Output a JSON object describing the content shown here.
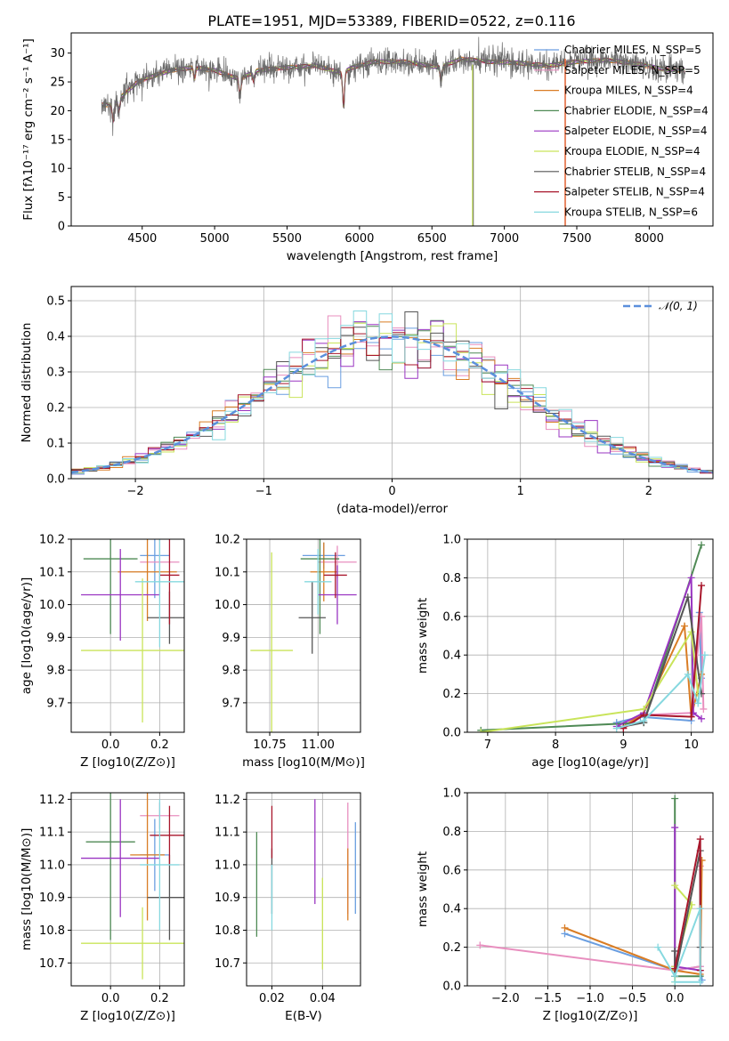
{
  "title": "PLATE=1951, MJD=53389, FIBERID=0522, z=0.116",
  "colors": [
    "#6a9ee0",
    "#e88fbf",
    "#d97d25",
    "#4f8a55",
    "#9a35c2",
    "#c9e45a",
    "#555555",
    "#a8162b",
    "#86d8df"
  ],
  "chart_data": [
    {
      "id": "spectrum",
      "type": "line",
      "xlabel": "wavelength [Angstrom, rest frame]",
      "ylabel": "Flux [fλ10⁻¹⁷ erg cm⁻² s⁻¹ A⁻¹]",
      "xlim": [
        4010,
        8440
      ],
      "ylim": [
        0,
        33.5
      ],
      "xticks": [
        4500,
        5000,
        5500,
        6000,
        6500,
        7000,
        7500,
        8000
      ],
      "yticks": [
        0,
        5,
        10,
        15,
        20,
        25,
        30
      ],
      "continuum": [
        [
          4220,
          21
        ],
        [
          4300,
          21
        ],
        [
          4380,
          23
        ],
        [
          4470,
          25
        ],
        [
          4570,
          26
        ],
        [
          4700,
          27
        ],
        [
          4850,
          27.5
        ],
        [
          5000,
          27
        ],
        [
          5170,
          25.5
        ],
        [
          5300,
          27
        ],
        [
          5500,
          27.5
        ],
        [
          5700,
          27.8
        ],
        [
          5880,
          26.5
        ],
        [
          5950,
          27.5
        ],
        [
          6100,
          28.5
        ],
        [
          6300,
          28.5
        ],
        [
          6560,
          27.5
        ],
        [
          6700,
          29
        ],
        [
          6900,
          28.5
        ],
        [
          7100,
          28.3
        ],
        [
          7300,
          27.8
        ],
        [
          7500,
          28.5
        ],
        [
          7700,
          28.8
        ],
        [
          7900,
          28.2
        ],
        [
          8100,
          27.2
        ],
        [
          8250,
          27
        ]
      ],
      "absorption": [
        [
          4300,
          -3
        ],
        [
          4861,
          -2
        ],
        [
          5175,
          -3
        ],
        [
          5890,
          -6
        ],
        [
          6563,
          -2.5
        ],
        [
          4340,
          -2
        ],
        [
          5270,
          -1.5
        ]
      ],
      "spike_x": [
        6780,
        7420
      ],
      "series": [
        {
          "name": "Chabrier MILES, N_SSP=5"
        },
        {
          "name": "Salpeter MILES, N_SSP=5"
        },
        {
          "name": "Kroupa MILES, N_SSP=4"
        },
        {
          "name": "Chabrier ELODIE, N_SSP=4"
        },
        {
          "name": "Salpeter ELODIE, N_SSP=4"
        },
        {
          "name": "Kroupa ELODIE, N_SSP=4"
        },
        {
          "name": "Chabrier STELIB, N_SSP=4"
        },
        {
          "name": "Salpeter STELIB, N_SSP=4"
        },
        {
          "name": "Kroupa STELIB, N_SSP=6"
        }
      ]
    },
    {
      "id": "residuals",
      "type": "line",
      "xlabel": "(data-model)/error",
      "ylabel": "Normed distribution",
      "xlim": [
        -2.5,
        2.5
      ],
      "ylim": [
        0,
        0.54
      ],
      "xticks": [
        -2,
        -1,
        0,
        1,
        2
      ],
      "yticks": [
        0.0,
        0.1,
        0.2,
        0.3,
        0.4,
        0.5
      ],
      "bin_width": 0.1,
      "reference": {
        "name": "N(0,1)",
        "mu": 0,
        "sigma": 1
      }
    },
    {
      "id": "z-age",
      "type": "scatter",
      "xlabel": "Z [log10(Z/Z⊙)]",
      "ylabel": "age  [log10(age/yr)]",
      "xlim": [
        -0.16,
        0.3
      ],
      "ylim": [
        9.61,
        10.2
      ],
      "xticks": [
        0.0,
        0.2
      ],
      "yticks": [
        9.7,
        9.8,
        9.9,
        10.0,
        10.1,
        10.2
      ],
      "points": [
        {
          "x": 0.18,
          "y": 10.15,
          "xerr": 0.06,
          "yerr": 0.13
        },
        {
          "x": 0.2,
          "y": 10.13,
          "xerr": 0.08,
          "yerr": 0.1
        },
        {
          "x": 0.15,
          "y": 10.1,
          "xerr": 0.12,
          "yerr": 0.15
        },
        {
          "x": 0.0,
          "y": 10.14,
          "xerr": 0.11,
          "yerr": 0.23
        },
        {
          "x": 0.04,
          "y": 10.03,
          "xerr": 0.16,
          "yerr": 0.14
        },
        {
          "x": 0.13,
          "y": 9.86,
          "xerr": 0.25,
          "yerr": 0.22
        },
        {
          "x": 0.24,
          "y": 9.96,
          "xerr": 0.09,
          "yerr": 0.08
        },
        {
          "x": 0.24,
          "y": 10.09,
          "xerr": 0.04,
          "yerr": 0.15
        },
        {
          "x": 0.2,
          "y": 10.07,
          "xerr": 0.1,
          "yerr": 0.2
        }
      ]
    },
    {
      "id": "mass-age",
      "type": "scatter",
      "xlabel": "mass [log10(M/M⊙)]",
      "ylabel": "",
      "xlim": [
        10.63,
        11.22
      ],
      "ylim": [
        9.61,
        10.2
      ],
      "xticks": [
        10.75,
        11.0
      ],
      "yticks": [
        9.7,
        9.8,
        9.9,
        10.0,
        10.1,
        10.2
      ],
      "points": [
        {
          "x": 11.03,
          "y": 10.15,
          "xerr": 0.11,
          "yerr": 0.04
        },
        {
          "x": 11.1,
          "y": 10.13,
          "xerr": 0.1,
          "yerr": 0.05
        },
        {
          "x": 11.03,
          "y": 10.1,
          "xerr": 0.07,
          "yerr": 0.09
        },
        {
          "x": 11.01,
          "y": 10.14,
          "xerr": 0.1,
          "yerr": 0.23
        },
        {
          "x": 11.1,
          "y": 10.03,
          "xerr": 0.1,
          "yerr": 0.09
        },
        {
          "x": 10.76,
          "y": 9.86,
          "xerr": 0.11,
          "yerr": 0.3
        },
        {
          "x": 10.97,
          "y": 9.96,
          "xerr": 0.07,
          "yerr": 0.11
        },
        {
          "x": 11.09,
          "y": 10.09,
          "xerr": 0.06,
          "yerr": 0.07
        },
        {
          "x": 11.0,
          "y": 10.07,
          "xerr": 0.07,
          "yerr": 0.1
        }
      ]
    },
    {
      "id": "age-weight",
      "type": "line",
      "xlabel": "age  [log10(age/yr)]",
      "ylabel": "mass weight",
      "xlim": [
        6.7,
        10.32
      ],
      "ylim": [
        0,
        1.0
      ],
      "xticks": [
        7,
        8,
        9,
        10
      ],
      "yticks": [
        0.0,
        0.2,
        0.4,
        0.6,
        0.8,
        1.0
      ],
      "series": [
        {
          "points": [
            [
              8.9,
              0.05
            ],
            [
              9.25,
              0.08
            ],
            [
              10.0,
              0.06
            ],
            [
              10.12,
              0.62
            ],
            [
              10.15,
              0.28
            ]
          ]
        },
        {
          "points": [
            [
              9.0,
              0.02
            ],
            [
              9.3,
              0.09
            ],
            [
              10.0,
              0.1
            ],
            [
              10.15,
              0.6
            ],
            [
              10.18,
              0.12
            ]
          ]
        },
        {
          "points": [
            [
              9.0,
              0.03
            ],
            [
              9.3,
              0.1
            ],
            [
              9.9,
              0.55
            ],
            [
              10.0,
              0.08
            ],
            [
              10.15,
              0.3
            ]
          ]
        },
        {
          "points": [
            [
              6.9,
              0.01
            ],
            [
              9.3,
              0.05
            ],
            [
              10.15,
              0.97
            ]
          ]
        },
        {
          "points": [
            [
              8.9,
              0.03
            ],
            [
              9.3,
              0.1
            ],
            [
              10.0,
              0.8
            ],
            [
              10.03,
              0.1
            ],
            [
              10.15,
              0.07
            ]
          ]
        },
        {
          "points": [
            [
              6.9,
              0.0
            ],
            [
              9.3,
              0.12
            ],
            [
              10.0,
              0.52
            ],
            [
              10.1,
              0.2
            ]
          ]
        },
        {
          "points": [
            [
              9.0,
              0.03
            ],
            [
              9.3,
              0.05
            ],
            [
              9.95,
              0.7
            ],
            [
              10.15,
              0.2
            ]
          ]
        },
        {
          "points": [
            [
              9.0,
              0.02
            ],
            [
              9.3,
              0.09
            ],
            [
              10.0,
              0.08
            ],
            [
              10.15,
              0.76
            ]
          ]
        },
        {
          "points": [
            [
              8.9,
              0.02
            ],
            [
              9.3,
              0.06
            ],
            [
              9.95,
              0.3
            ],
            [
              10.1,
              0.15
            ],
            [
              10.2,
              0.4
            ]
          ]
        }
      ]
    },
    {
      "id": "z-mass",
      "type": "scatter",
      "xlabel": "Z [log10(Z/Z⊙)]",
      "ylabel": "mass [log10(M/M⊙)]",
      "xlim": [
        -0.16,
        0.3
      ],
      "ylim": [
        10.63,
        11.22
      ],
      "xticks": [
        0.0,
        0.2
      ],
      "yticks": [
        10.7,
        10.8,
        10.9,
        11.0,
        11.1,
        11.2
      ],
      "points": [
        {
          "x": 0.18,
          "y": 11.03,
          "xerr": 0.06,
          "yerr": 0.11
        },
        {
          "x": 0.2,
          "y": 11.15,
          "xerr": 0.08,
          "yerr": 0.04
        },
        {
          "x": 0.15,
          "y": 11.03,
          "xerr": 0.07,
          "yerr": 0.2
        },
        {
          "x": 0.0,
          "y": 11.07,
          "xerr": 0.1,
          "yerr": 0.3
        },
        {
          "x": 0.04,
          "y": 11.02,
          "xerr": 0.16,
          "yerr": 0.18
        },
        {
          "x": 0.13,
          "y": 10.76,
          "xerr": 0.25,
          "yerr": 0.11
        },
        {
          "x": 0.24,
          "y": 10.9,
          "xerr": 0.09,
          "yerr": 0.13
        },
        {
          "x": 0.24,
          "y": 11.09,
          "xerr": 0.08,
          "yerr": 0.09
        },
        {
          "x": 0.2,
          "y": 11.0,
          "xerr": 0.08,
          "yerr": 0.2
        }
      ]
    },
    {
      "id": "ebv-mass",
      "type": "scatter",
      "xlabel": "E(B-V)",
      "ylabel": "",
      "xlim": [
        0.01,
        0.055
      ],
      "ylim": [
        10.63,
        11.22
      ],
      "xticks": [
        0.02,
        0.04
      ],
      "yticks": [
        10.7,
        10.8,
        10.9,
        11.0,
        11.1,
        11.2
      ],
      "points": [
        {
          "x": 0.053,
          "y": 10.99,
          "xerr": 0,
          "yerr": 0.14
        },
        {
          "x": 0.05,
          "y": 11.02,
          "xerr": 0,
          "yerr": 0.17
        },
        {
          "x": 0.05,
          "y": 10.94,
          "xerr": 0,
          "yerr": 0.11
        },
        {
          "x": 0.014,
          "y": 10.94,
          "xerr": 0,
          "yerr": 0.16
        },
        {
          "x": 0.037,
          "y": 11.04,
          "xerr": 0,
          "yerr": 0.16
        },
        {
          "x": 0.04,
          "y": 10.82,
          "xerr": 0,
          "yerr": 0.14
        },
        {
          "x": 0.02,
          "y": 10.95,
          "xerr": 0,
          "yerr": 0.1
        },
        {
          "x": 0.02,
          "y": 11.1,
          "xerr": 0,
          "yerr": 0.08
        },
        {
          "x": 0.02,
          "y": 10.9,
          "xerr": 0,
          "yerr": 0.1
        }
      ]
    },
    {
      "id": "z-weight",
      "type": "line",
      "xlabel": "Z [log10(Z/Z⊙)]",
      "ylabel": "mass weight",
      "xlim": [
        -2.45,
        0.45
      ],
      "ylim": [
        0,
        1.0
      ],
      "xticks": [
        -2.0,
        -1.5,
        -1.0,
        -0.5,
        0.0
      ],
      "yticks": [
        0.0,
        0.2,
        0.4,
        0.6,
        0.8,
        1.0
      ],
      "series": [
        {
          "points": [
            [
              -1.3,
              0.27
            ],
            [
              0.0,
              0.08
            ],
            [
              0.3,
              0.1
            ],
            [
              0.32,
              0.03
            ]
          ]
        },
        {
          "points": [
            [
              -2.3,
              0.21
            ],
            [
              0.0,
              0.08
            ],
            [
              0.3,
              0.1
            ],
            [
              0.3,
              0.62
            ]
          ]
        },
        {
          "points": [
            [
              -1.3,
              0.3
            ],
            [
              0.0,
              0.08
            ],
            [
              0.3,
              0.06
            ],
            [
              0.32,
              0.65
            ]
          ]
        },
        {
          "points": [
            [
              0.0,
              0.97
            ],
            [
              0.0,
              0.05
            ],
            [
              0.3,
              0.05
            ]
          ]
        },
        {
          "points": [
            [
              0.0,
              0.82
            ],
            [
              0.0,
              0.1
            ],
            [
              0.3,
              0.08
            ]
          ]
        },
        {
          "points": [
            [
              0.0,
              0.52
            ],
            [
              0.2,
              0.42
            ],
            [
              0.0,
              0.1
            ],
            [
              0.0,
              0.02
            ]
          ]
        },
        {
          "points": [
            [
              0.0,
              0.18
            ],
            [
              0.0,
              0.05
            ],
            [
              0.3,
              0.7
            ],
            [
              0.3,
              0.2
            ]
          ]
        },
        {
          "points": [
            [
              0.0,
              0.09
            ],
            [
              0.3,
              0.76
            ],
            [
              0.3,
              0.08
            ]
          ]
        },
        {
          "points": [
            [
              -0.2,
              0.2
            ],
            [
              0.0,
              0.05
            ],
            [
              0.3,
              0.4
            ],
            [
              0.3,
              0.02
            ],
            [
              0.0,
              0.02
            ]
          ]
        }
      ]
    }
  ]
}
